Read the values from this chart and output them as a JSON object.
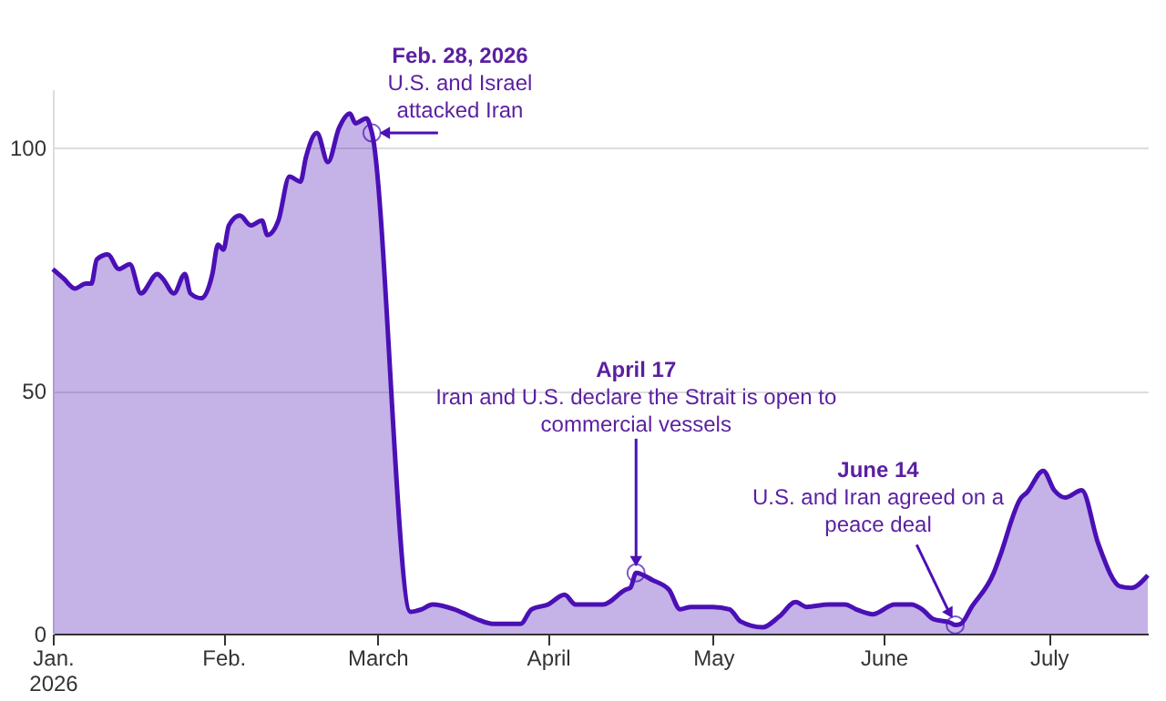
{
  "chart_data": {
    "type": "area",
    "x": [
      "2026-01-01",
      "2026-01-03",
      "2026-01-05",
      "2026-01-07",
      "2026-01-08",
      "2026-01-09",
      "2026-01-11",
      "2026-01-13",
      "2026-01-15",
      "2026-01-17",
      "2026-01-20",
      "2026-01-21",
      "2026-01-23",
      "2026-01-25",
      "2026-01-26",
      "2026-01-28",
      "2026-01-30",
      "2026-01-31",
      "2026-02-01",
      "2026-02-02",
      "2026-02-04",
      "2026-02-06",
      "2026-02-08",
      "2026-02-09",
      "2026-02-11",
      "2026-02-13",
      "2026-02-15",
      "2026-02-16",
      "2026-02-18",
      "2026-02-20",
      "2026-02-22",
      "2026-02-24",
      "2026-02-25",
      "2026-02-27",
      "2026-02-28",
      "2026-03-07",
      "2026-03-09",
      "2026-03-11",
      "2026-03-15",
      "2026-03-19",
      "2026-03-22",
      "2026-03-27",
      "2026-03-29",
      "2026-04-01",
      "2026-04-04",
      "2026-04-06",
      "2026-04-08",
      "2026-04-11",
      "2026-04-15",
      "2026-04-16",
      "2026-04-17",
      "2026-04-20",
      "2026-04-23",
      "2026-04-25",
      "2026-04-27",
      "2026-05-01",
      "2026-05-04",
      "2026-05-06",
      "2026-05-10",
      "2026-05-13",
      "2026-05-16",
      "2026-05-18",
      "2026-05-22",
      "2026-05-25",
      "2026-05-27",
      "2026-05-30",
      "2026-06-03",
      "2026-06-06",
      "2026-06-08",
      "2026-06-10",
      "2026-06-13",
      "2026-06-14",
      "2026-06-15",
      "2026-06-17",
      "2026-06-21",
      "2026-06-22",
      "2026-06-26",
      "2026-06-27",
      "2026-06-30",
      "2026-07-02",
      "2026-07-04",
      "2026-07-07",
      "2026-07-10",
      "2026-07-14",
      "2026-07-16",
      "2026-07-19"
    ],
    "series": [
      {
        "color": "#4b10b5",
        "values": [
          75,
          73,
          71,
          72,
          72,
          77,
          78,
          75,
          76,
          70,
          74,
          73,
          70,
          74,
          70,
          69,
          74,
          80,
          79,
          84,
          86,
          84,
          85,
          82,
          85,
          94,
          93,
          98,
          103,
          97,
          104,
          107,
          105,
          106,
          103,
          4.5,
          5,
          6,
          5,
          3,
          2,
          2,
          5,
          6,
          8,
          6,
          6,
          6,
          9,
          9.5,
          12.5,
          11,
          9,
          5,
          5.5,
          5.5,
          5,
          2.5,
          1.3,
          3.5,
          6.5,
          5.5,
          6,
          6,
          5,
          4,
          6,
          6,
          5,
          3,
          2.3,
          1.8,
          2,
          5.5,
          12.5,
          15.5,
          28,
          29,
          33.5,
          29.5,
          28,
          29.5,
          18.5,
          9.7,
          9.4,
          12
        ]
      }
    ],
    "xlim": [
      "2026-01-01",
      "2026-07-19"
    ],
    "xticks": [
      {
        "value": "2026-01-01",
        "label": "Jan.\n2026"
      },
      {
        "value": "2026-02-01",
        "label": "Feb."
      },
      {
        "value": "2026-03-01",
        "label": "March"
      },
      {
        "value": "2026-04-01",
        "label": "April"
      },
      {
        "value": "2026-05-01",
        "label": "May"
      },
      {
        "value": "2026-06-01",
        "label": "June"
      },
      {
        "value": "2026-07-01",
        "label": "July"
      }
    ],
    "ylim": [
      0,
      112
    ],
    "yticks": [
      0,
      50,
      100
    ],
    "grid": "y",
    "annotations": [
      {
        "text": "Feb. 28, 2026\nU.S. and Israel\nattacked Iran",
        "x": "2026-02-28",
        "y": 103
      },
      {
        "text": "April 17\nIran and U.S. declare the Strait is open to\ncommercial vessels",
        "x": "2026-04-17",
        "y": 12.5
      },
      {
        "text": "June 14\nU.S. and Iran agreed on a\npeace deal",
        "x": "2026-06-14",
        "y": 1.8
      }
    ]
  }
}
